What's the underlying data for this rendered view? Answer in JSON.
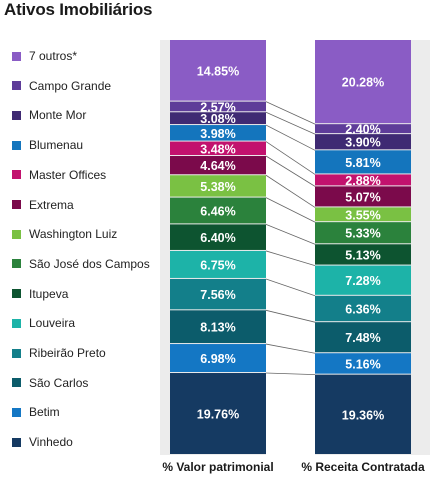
{
  "chart_data": {
    "type": "bar",
    "stacked": true,
    "percent": true,
    "title": "Ativos Imobiliários",
    "categories": [
      "% Valor patrimonial",
      "% Receita Contratada"
    ],
    "series": [
      {
        "name": "Vinhedo",
        "color": "#153a62",
        "values": [
          19.76,
          19.36
        ],
        "labels": [
          "19.76%",
          "19.36%"
        ]
      },
      {
        "name": "Betim",
        "color": "#1477c4",
        "values": [
          6.98,
          5.16
        ],
        "labels": [
          "6.98%",
          "5.16%"
        ]
      },
      {
        "name": "São Carlos",
        "color": "#0c5c6b",
        "values": [
          8.13,
          7.48
        ],
        "labels": [
          "8.13%",
          "7.48%"
        ]
      },
      {
        "name": "Ribeirão Preto",
        "color": "#137f8a",
        "values": [
          7.56,
          6.36
        ],
        "labels": [
          "7.56%",
          "6.36%"
        ]
      },
      {
        "name": "Louveira",
        "color": "#1db3a8",
        "values": [
          6.75,
          7.28
        ],
        "labels": [
          "6.75%",
          "7.28%"
        ]
      },
      {
        "name": "Itupeva",
        "color": "#0d5430",
        "values": [
          6.4,
          5.13
        ],
        "labels": [
          "6.40%",
          "5.13%"
        ]
      },
      {
        "name": "São José dos Campos",
        "color": "#2b823c",
        "values": [
          6.46,
          5.33
        ],
        "labels": [
          "6.46%",
          "5.33%"
        ]
      },
      {
        "name": "Washington Luiz",
        "color": "#7ac143",
        "values": [
          5.38,
          3.55
        ],
        "labels": [
          "5.38%",
          "3.55%"
        ]
      },
      {
        "name": "Extrema",
        "color": "#7b0a4b",
        "values": [
          4.64,
          5.07
        ],
        "labels": [
          "4.64%",
          "5.07%"
        ]
      },
      {
        "name": "Master Offices",
        "color": "#c2126e",
        "values": [
          3.48,
          2.88
        ],
        "labels": [
          "3.48%",
          "2.88%"
        ]
      },
      {
        "name": "Blumenau",
        "color": "#1475bd",
        "values": [
          3.98,
          5.81
        ],
        "labels": [
          "3.98%",
          "5.81%"
        ]
      },
      {
        "name": "Monte Mor",
        "color": "#3f2a73",
        "values": [
          3.08,
          3.9
        ],
        "labels": [
          "3.08%",
          "3.90%"
        ]
      },
      {
        "name": "Campo Grande",
        "color": "#5e3c99",
        "values": [
          2.57,
          2.4
        ],
        "labels": [
          "2.57%",
          "2.40%"
        ]
      },
      {
        "name": "7 outros*",
        "color": "#8a5cc5",
        "values": [
          14.85,
          20.28
        ],
        "labels": [
          "14.85%",
          "20.28%"
        ]
      }
    ],
    "legend_order": [
      "7 outros*",
      "Campo Grande",
      "Monte Mor",
      "Blumenau",
      "Master Offices",
      "Extrema",
      "Washington Luiz",
      "São José dos Campos",
      "Itupeva",
      "Louveira",
      "Ribeirão Preto",
      "São Carlos",
      "Betim",
      "Vinhedo"
    ],
    "legend_position": "left",
    "connector_lines": true,
    "grid": false
  }
}
